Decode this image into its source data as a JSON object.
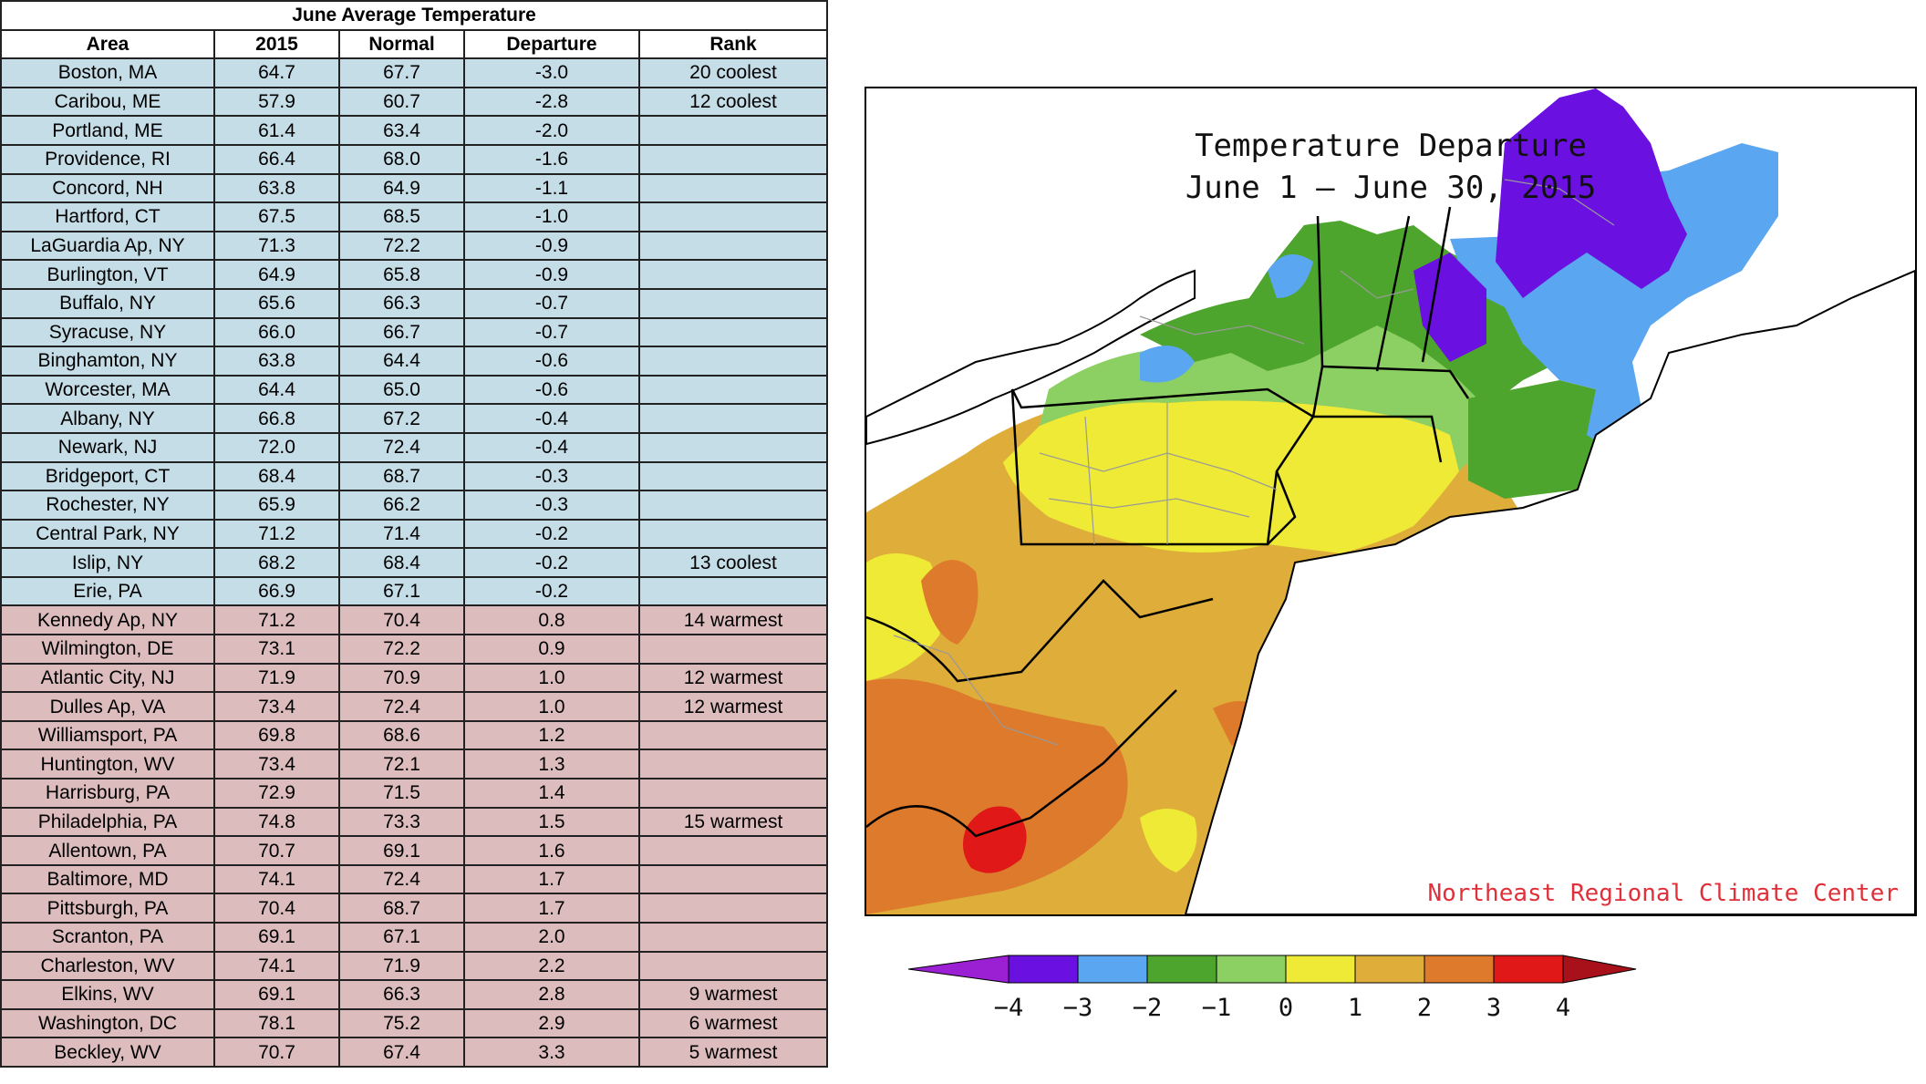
{
  "chart_data": [
    {
      "type": "table",
      "title": "June Average Temperature",
      "columns": [
        "Area",
        "2015",
        "Normal",
        "Departure",
        "Rank"
      ],
      "rows": [
        [
          "Boston, MA",
          "64.7",
          "67.7",
          "-3.0",
          "20 coolest"
        ],
        [
          "Caribou, ME",
          "57.9",
          "60.7",
          "-2.8",
          "12 coolest"
        ],
        [
          "Portland, ME",
          "61.4",
          "63.4",
          "-2.0",
          ""
        ],
        [
          "Providence, RI",
          "66.4",
          "68.0",
          "-1.6",
          ""
        ],
        [
          "Concord, NH",
          "63.8",
          "64.9",
          "-1.1",
          ""
        ],
        [
          "Hartford, CT",
          "67.5",
          "68.5",
          "-1.0",
          ""
        ],
        [
          "LaGuardia Ap, NY",
          "71.3",
          "72.2",
          "-0.9",
          ""
        ],
        [
          "Burlington, VT",
          "64.9",
          "65.8",
          "-0.9",
          ""
        ],
        [
          "Buffalo, NY",
          "65.6",
          "66.3",
          "-0.7",
          ""
        ],
        [
          "Syracuse, NY",
          "66.0",
          "66.7",
          "-0.7",
          ""
        ],
        [
          "Binghamton, NY",
          "63.8",
          "64.4",
          "-0.6",
          ""
        ],
        [
          "Worcester, MA",
          "64.4",
          "65.0",
          "-0.6",
          ""
        ],
        [
          "Albany, NY",
          "66.8",
          "67.2",
          "-0.4",
          ""
        ],
        [
          "Newark, NJ",
          "72.0",
          "72.4",
          "-0.4",
          ""
        ],
        [
          "Bridgeport, CT",
          "68.4",
          "68.7",
          "-0.3",
          ""
        ],
        [
          "Rochester, NY",
          "65.9",
          "66.2",
          "-0.3",
          ""
        ],
        [
          "Central Park, NY",
          "71.2",
          "71.4",
          "-0.2",
          ""
        ],
        [
          "Islip, NY",
          "68.2",
          "68.4",
          "-0.2",
          "13 coolest"
        ],
        [
          "Erie, PA",
          "66.9",
          "67.1",
          "-0.2",
          ""
        ],
        [
          "Kennedy Ap, NY",
          "71.2",
          "70.4",
          "0.8",
          "14 warmest"
        ],
        [
          "Wilmington, DE",
          "73.1",
          "72.2",
          "0.9",
          ""
        ],
        [
          "Atlantic City, NJ",
          "71.9",
          "70.9",
          "1.0",
          "12 warmest"
        ],
        [
          "Dulles Ap, VA",
          "73.4",
          "72.4",
          "1.0",
          "12 warmest"
        ],
        [
          "Williamsport, PA",
          "69.8",
          "68.6",
          "1.2",
          ""
        ],
        [
          "Huntington, WV",
          "73.4",
          "72.1",
          "1.3",
          ""
        ],
        [
          "Harrisburg, PA",
          "72.9",
          "71.5",
          "1.4",
          ""
        ],
        [
          "Philadelphia, PA",
          "74.8",
          "73.3",
          "1.5",
          "15 warmest"
        ],
        [
          "Allentown, PA",
          "70.7",
          "69.1",
          "1.6",
          ""
        ],
        [
          "Baltimore, MD",
          "74.1",
          "72.4",
          "1.7",
          ""
        ],
        [
          "Pittsburgh, PA",
          "70.4",
          "68.7",
          "1.7",
          ""
        ],
        [
          "Scranton, PA",
          "69.1",
          "67.1",
          "2.0",
          ""
        ],
        [
          "Charleston, WV",
          "74.1",
          "71.9",
          "2.2",
          ""
        ],
        [
          "Elkins, WV",
          "69.1",
          "66.3",
          "2.8",
          "9 warmest"
        ],
        [
          "Washington, DC",
          "78.1",
          "75.2",
          "2.9",
          "6 warmest"
        ],
        [
          "Beckley, WV",
          "70.7",
          "67.4",
          "3.3",
          "5 warmest"
        ]
      ],
      "row_colors": {
        "cool": "#c5dde7",
        "warm": "#dcbcbc"
      }
    },
    {
      "type": "heatmap",
      "title_line1": "Temperature Departure",
      "title_line2": "June 1 — June 30, 2015",
      "credit": "Northeast Regional Climate Center",
      "colorbar": {
        "ticks": [
          "−4",
          "−3",
          "−2",
          "−1",
          "0",
          "1",
          "2",
          "3",
          "4"
        ],
        "tick_values": [
          -4,
          -3,
          -2,
          -1,
          0,
          1,
          2,
          3,
          4
        ],
        "colors": [
          "#9b1fd3",
          "#6a10e0",
          "#5aa6f0",
          "#4ea52e",
          "#8ccf62",
          "#eeea36",
          "#dfae3a",
          "#dd7a2c",
          "#e01818",
          "#a8101a"
        ]
      }
    }
  ]
}
